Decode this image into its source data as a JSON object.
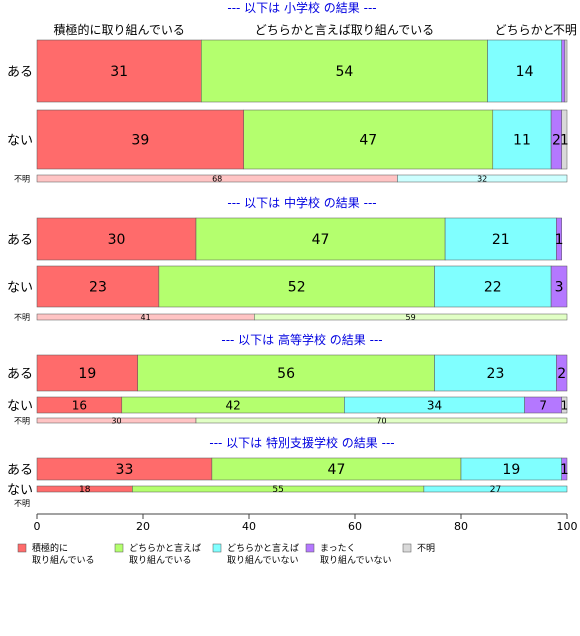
{
  "chart_data": {
    "type": "bar",
    "orientation": "horizontal",
    "stacked": true,
    "percent": true,
    "xlim": [
      0,
      100
    ],
    "x_ticks": [
      0,
      20,
      40,
      60,
      80,
      100
    ],
    "top_labels": {
      "items": [
        {
          "text": "積極的に取り組んでいる",
          "at": 15.5
        },
        {
          "text": "どちらかと言えば取り組んでいる",
          "at": 58
        },
        {
          "text": "どちらかと",
          "at": 92
        },
        {
          "text": "不明",
          "at": 99.6
        }
      ]
    },
    "legend": {
      "placement": "bottom-left",
      "items": [
        {
          "key": "active",
          "line1": "積極的に",
          "line2": "取り組んでいる",
          "color": "#ff6b6b"
        },
        {
          "key": "somewhat",
          "line1": "どちらかと言えば",
          "line2": "取り組んでいる",
          "color": "#b4ff6e"
        },
        {
          "key": "somewhat_not",
          "line1": "どちらかと言えば",
          "line2": "取り組んでいない",
          "color": "#80ffff"
        },
        {
          "key": "not_at_all",
          "line1": "まったく",
          "line2": "取り組んでいない",
          "color": "#b478ff"
        },
        {
          "key": "unknown",
          "line1": "不明",
          "line2": "",
          "color": "#d9d9d9"
        }
      ]
    },
    "groups": [
      {
        "title": "--- 以下は 小学校 の結果 ---",
        "rows": [
          {
            "label": "ある",
            "values": [
              31,
              54,
              14,
              0.6,
              0.4
            ],
            "labels": [
              "31",
              "54",
              "14",
              "",
              ""
            ],
            "size": "big"
          },
          {
            "label": "ない",
            "values": [
              39,
              47,
              11,
              2,
              1
            ],
            "labels": [
              "39",
              "47",
              "11",
              "2",
              "1"
            ],
            "size": "big"
          },
          {
            "label": "不明",
            "values": [
              68,
              0,
              32,
              0,
              0
            ],
            "labels": [
              "68",
              "",
              "32",
              "",
              ""
            ],
            "size": "tiny"
          }
        ]
      },
      {
        "title": "--- 以下は 中学校 の結果 ---",
        "rows": [
          {
            "label": "ある",
            "values": [
              30,
              47,
              21,
              1,
              0
            ],
            "labels": [
              "30",
              "47",
              "21",
              "1",
              ""
            ],
            "size": "big"
          },
          {
            "label": "ない",
            "values": [
              23,
              52,
              22,
              3,
              0
            ],
            "labels": [
              "23",
              "52",
              "22",
              "3",
              ""
            ],
            "size": "big"
          },
          {
            "label": "不明",
            "values": [
              41,
              59,
              0,
              0,
              0
            ],
            "labels": [
              "41",
              "59",
              "",
              "",
              ""
            ],
            "size": "tiny"
          }
        ]
      },
      {
        "title": "--- 以下は 高等学校 の結果 ---",
        "rows": [
          {
            "label": "ある",
            "values": [
              19,
              56,
              23,
              2,
              0
            ],
            "labels": [
              "19",
              "56",
              "23",
              "2",
              ""
            ],
            "size": "big"
          },
          {
            "label": "ない",
            "values": [
              16,
              42,
              34,
              7,
              1
            ],
            "labels": [
              "16",
              "42",
              "34",
              "7",
              "1"
            ],
            "size": "mid"
          },
          {
            "label": "不明",
            "values": [
              30,
              70,
              0,
              0,
              0
            ],
            "labels": [
              "30",
              "70",
              "",
              "",
              ""
            ],
            "size": "tiny"
          }
        ]
      },
      {
        "title": "--- 以下は 特別支援学校 の結果 ---",
        "rows": [
          {
            "label": "ある",
            "values": [
              33,
              47,
              19,
              1,
              0
            ],
            "labels": [
              "33",
              "47",
              "19",
              "1",
              ""
            ],
            "size": "big"
          },
          {
            "label": "ない",
            "values": [
              18,
              55,
              27,
              0,
              0
            ],
            "labels": [
              "18",
              "55",
              "27",
              "",
              ""
            ],
            "size": "small"
          },
          {
            "label": "不明",
            "values": [],
            "labels": [],
            "size": "none"
          }
        ]
      }
    ]
  }
}
